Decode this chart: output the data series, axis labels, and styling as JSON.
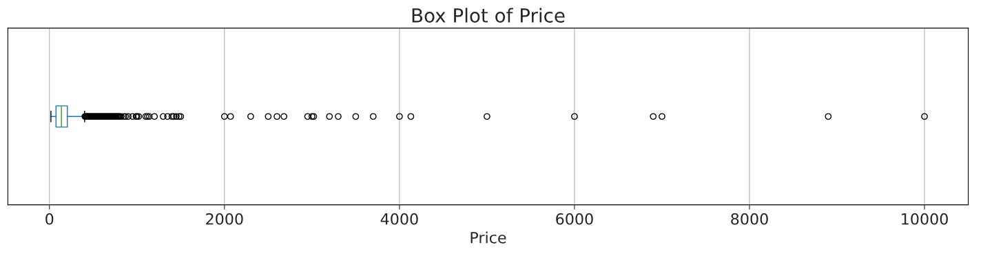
{
  "chart_data": {
    "type": "box",
    "title": "Box Plot of Price",
    "xlabel": "Price",
    "orientation": "horizontal",
    "categories": [
      null
    ],
    "boxes": [
      {
        "low": 17,
        "q1": 75,
        "median": 137,
        "q3": 205,
        "high": 402,
        "outliers": [
          405,
          415,
          425,
          435,
          445,
          455,
          465,
          475,
          485,
          495,
          505,
          515,
          525,
          535,
          545,
          555,
          565,
          575,
          585,
          595,
          605,
          615,
          625,
          635,
          645,
          655,
          665,
          675,
          685,
          695,
          705,
          715,
          725,
          735,
          745,
          755,
          765,
          775,
          785,
          795,
          805,
          820,
          850,
          870,
          900,
          950,
          990,
          1000,
          1020,
          1100,
          1120,
          1140,
          1200,
          1300,
          1350,
          1400,
          1420,
          1450,
          1480,
          1500,
          2000,
          2070,
          2300,
          2500,
          2600,
          2680,
          2950,
          3000,
          3020,
          3200,
          3300,
          3500,
          3700,
          4000,
          4130,
          5000,
          6000,
          6900,
          7000,
          8900,
          10000
        ]
      }
    ],
    "color": "#1f77b4",
    "xlim": [
      -475,
      10500
    ],
    "xticks": [
      0,
      2000,
      4000,
      6000,
      8000,
      10000
    ],
    "grid": "x",
    "tick_labels": "x"
  }
}
